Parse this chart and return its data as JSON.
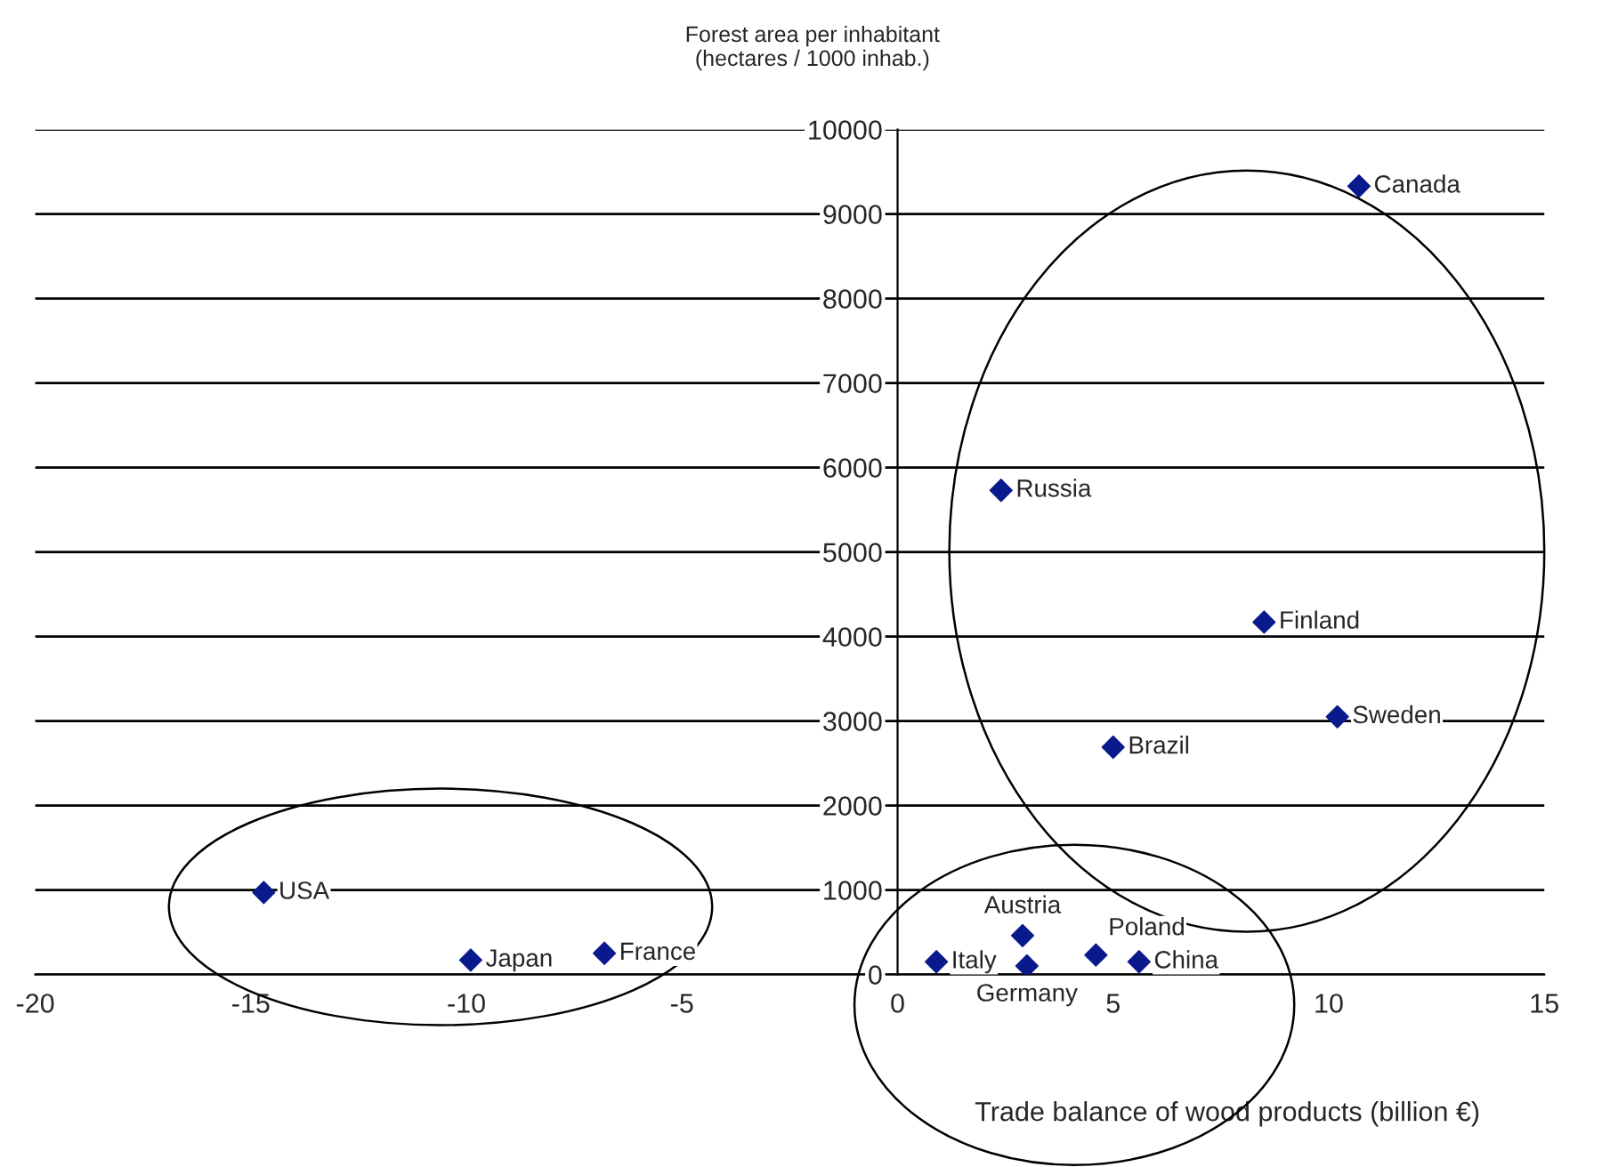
{
  "chart_data": {
    "type": "scatter",
    "xlabel": "Trade balance of wood products (billion €)",
    "ylabel": "Forest area per inhabitant\n(hectares / 1000 inhab.)",
    "x": [
      -14.7,
      -9.9,
      -6.8,
      10.7,
      2.4,
      8.5,
      10.2,
      5.0,
      0.9,
      2.9,
      3.0,
      4.6,
      5.6
    ],
    "series": [
      {
        "color": "#0a1a8c",
        "values": [
          970,
          170,
          250,
          9330,
          5730,
          4170,
          3050,
          2690,
          150,
          460,
          100,
          230,
          150
        ]
      }
    ],
    "xlim": [
      -20,
      15
    ],
    "xticks": [
      -20,
      -15,
      -10,
      -5,
      0,
      5,
      10,
      15
    ],
    "ylim": [
      0,
      10000
    ],
    "yticks": [
      0,
      1000,
      2000,
      3000,
      4000,
      5000,
      6000,
      7000,
      8000,
      9000,
      10000
    ],
    "grid": "y",
    "marker": "diamond",
    "legend": false,
    "annotations": [
      {
        "text": "Canada",
        "x": 10.7,
        "y": 9330
      },
      {
        "text": "Russia",
        "x": 2.4,
        "y": 5730
      },
      {
        "text": "Finland",
        "x": 8.5,
        "y": 4170
      },
      {
        "text": "Sweden",
        "x": 10.2,
        "y": 3050
      },
      {
        "text": "Brazil",
        "x": 5.0,
        "y": 2690
      },
      {
        "text": "USA",
        "x": -14.7,
        "y": 970
      },
      {
        "text": "Japan",
        "x": -9.9,
        "y": 170
      },
      {
        "text": "France",
        "x": -6.8,
        "y": 250
      },
      {
        "text": "Austria",
        "x": 2.9,
        "y": 460
      },
      {
        "text": "Poland",
        "x": 4.6,
        "y": 230
      },
      {
        "text": "China",
        "x": 5.6,
        "y": 150
      },
      {
        "text": "Italy",
        "x": 0.9,
        "y": 150
      },
      {
        "text": "Germany",
        "x": 3.0,
        "y": 100
      }
    ]
  }
}
